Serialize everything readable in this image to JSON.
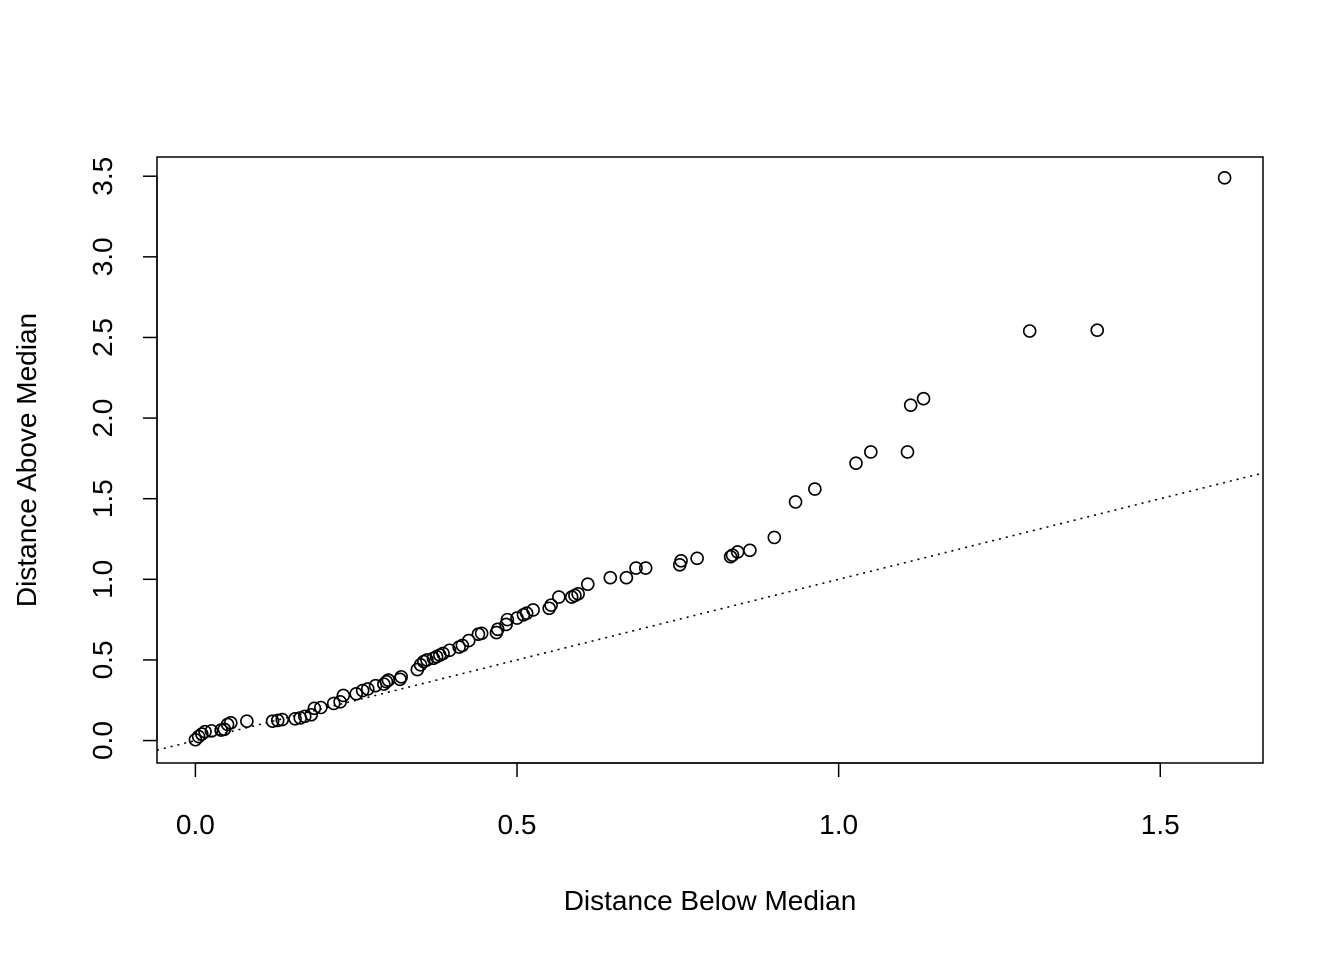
{
  "chart_data": {
    "type": "scatter",
    "title": "",
    "xlabel": "Distance Below Median",
    "ylabel": "Distance Above Median",
    "xlim": [
      -0.0597,
      1.6597
    ],
    "ylim": [
      -0.1392,
      3.6192
    ],
    "x_ticks": [
      0.0,
      0.5,
      1.0,
      1.5
    ],
    "x_tick_labels": [
      "0.0",
      "0.5",
      "1.0",
      "1.5"
    ],
    "y_ticks": [
      0.0,
      0.5,
      1.0,
      1.5,
      2.0,
      2.5,
      3.0,
      3.5
    ],
    "y_tick_labels": [
      "0.0",
      "0.5",
      "1.0",
      "1.5",
      "2.0",
      "2.5",
      "3.0",
      "3.5"
    ],
    "grid": false,
    "legend": "none",
    "reference_line": {
      "intercept": 0,
      "slope": 1,
      "style": "dotted"
    },
    "points": [
      {
        "x": 0.0,
        "y": 0.005
      },
      {
        "x": 0.005,
        "y": 0.025
      },
      {
        "x": 0.01,
        "y": 0.04
      },
      {
        "x": 0.015,
        "y": 0.055
      },
      {
        "x": 0.025,
        "y": 0.06
      },
      {
        "x": 0.04,
        "y": 0.065
      },
      {
        "x": 0.045,
        "y": 0.07
      },
      {
        "x": 0.05,
        "y": 0.1
      },
      {
        "x": 0.055,
        "y": 0.11
      },
      {
        "x": 0.08,
        "y": 0.12
      },
      {
        "x": 0.12,
        "y": 0.12
      },
      {
        "x": 0.128,
        "y": 0.125
      },
      {
        "x": 0.135,
        "y": 0.13
      },
      {
        "x": 0.155,
        "y": 0.135
      },
      {
        "x": 0.163,
        "y": 0.14
      },
      {
        "x": 0.17,
        "y": 0.15
      },
      {
        "x": 0.18,
        "y": 0.16
      },
      {
        "x": 0.185,
        "y": 0.2
      },
      {
        "x": 0.195,
        "y": 0.205
      },
      {
        "x": 0.215,
        "y": 0.23
      },
      {
        "x": 0.225,
        "y": 0.24
      },
      {
        "x": 0.23,
        "y": 0.28
      },
      {
        "x": 0.25,
        "y": 0.29
      },
      {
        "x": 0.26,
        "y": 0.31
      },
      {
        "x": 0.268,
        "y": 0.32
      },
      {
        "x": 0.28,
        "y": 0.34
      },
      {
        "x": 0.293,
        "y": 0.35
      },
      {
        "x": 0.297,
        "y": 0.365
      },
      {
        "x": 0.3,
        "y": 0.375
      },
      {
        "x": 0.318,
        "y": 0.38
      },
      {
        "x": 0.32,
        "y": 0.395
      },
      {
        "x": 0.345,
        "y": 0.44
      },
      {
        "x": 0.35,
        "y": 0.47
      },
      {
        "x": 0.355,
        "y": 0.49
      },
      {
        "x": 0.36,
        "y": 0.5
      },
      {
        "x": 0.37,
        "y": 0.51
      },
      {
        "x": 0.375,
        "y": 0.52
      },
      {
        "x": 0.38,
        "y": 0.53
      },
      {
        "x": 0.385,
        "y": 0.54
      },
      {
        "x": 0.395,
        "y": 0.56
      },
      {
        "x": 0.41,
        "y": 0.58
      },
      {
        "x": 0.415,
        "y": 0.59
      },
      {
        "x": 0.425,
        "y": 0.62
      },
      {
        "x": 0.44,
        "y": 0.66
      },
      {
        "x": 0.445,
        "y": 0.665
      },
      {
        "x": 0.468,
        "y": 0.67
      },
      {
        "x": 0.47,
        "y": 0.69
      },
      {
        "x": 0.483,
        "y": 0.72
      },
      {
        "x": 0.485,
        "y": 0.75
      },
      {
        "x": 0.5,
        "y": 0.76
      },
      {
        "x": 0.51,
        "y": 0.78
      },
      {
        "x": 0.515,
        "y": 0.79
      },
      {
        "x": 0.525,
        "y": 0.81
      },
      {
        "x": 0.55,
        "y": 0.82
      },
      {
        "x": 0.553,
        "y": 0.84
      },
      {
        "x": 0.565,
        "y": 0.89
      },
      {
        "x": 0.585,
        "y": 0.89
      },
      {
        "x": 0.59,
        "y": 0.9
      },
      {
        "x": 0.595,
        "y": 0.91
      },
      {
        "x": 0.61,
        "y": 0.97
      },
      {
        "x": 0.645,
        "y": 1.01
      },
      {
        "x": 0.67,
        "y": 1.01
      },
      {
        "x": 0.685,
        "y": 1.07
      },
      {
        "x": 0.7,
        "y": 1.07
      },
      {
        "x": 0.753,
        "y": 1.09
      },
      {
        "x": 0.755,
        "y": 1.115
      },
      {
        "x": 0.78,
        "y": 1.13
      },
      {
        "x": 0.832,
        "y": 1.14
      },
      {
        "x": 0.835,
        "y": 1.15
      },
      {
        "x": 0.843,
        "y": 1.17
      },
      {
        "x": 0.862,
        "y": 1.18
      },
      {
        "x": 0.9,
        "y": 1.26
      },
      {
        "x": 0.933,
        "y": 1.48
      },
      {
        "x": 0.963,
        "y": 1.56
      },
      {
        "x": 1.027,
        "y": 1.72
      },
      {
        "x": 1.05,
        "y": 1.79
      },
      {
        "x": 1.107,
        "y": 1.79
      },
      {
        "x": 1.112,
        "y": 2.08
      },
      {
        "x": 1.132,
        "y": 2.12
      },
      {
        "x": 1.297,
        "y": 2.54
      },
      {
        "x": 1.402,
        "y": 2.545
      },
      {
        "x": 1.6,
        "y": 3.49
      }
    ]
  }
}
